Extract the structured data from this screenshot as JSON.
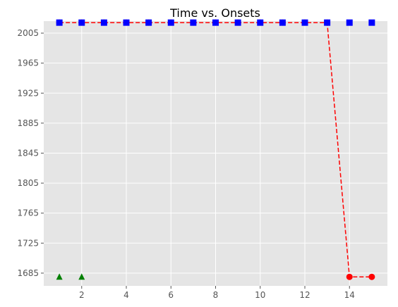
{
  "chart_data": {
    "type": "line",
    "title": "Time vs. Onsets",
    "xlabel": "",
    "ylabel": "",
    "xlim": [
      0.3,
      15.7
    ],
    "ylim": [
      1668,
      2021
    ],
    "x_ticks": [
      2,
      4,
      6,
      8,
      10,
      12,
      14
    ],
    "y_ticks": [
      1685,
      1725,
      1765,
      1805,
      1845,
      1885,
      1925,
      1965,
      2005
    ],
    "grid": true,
    "legend": "none",
    "series": [
      {
        "style": "red-dashed-line-with-circles",
        "color": "#ff0000",
        "line": "dashed",
        "marker": "circle",
        "x": [
          1,
          2,
          3,
          4,
          5,
          6,
          7,
          8,
          9,
          10,
          11,
          12,
          13,
          14,
          15
        ],
        "y": [
          2019,
          2019,
          2019,
          2019,
          2019,
          2019,
          2019,
          2019,
          2019,
          2019,
          2019,
          2019,
          2019,
          1680,
          1680
        ]
      },
      {
        "style": "blue-squares",
        "color": "#0000ff",
        "line": "none",
        "marker": "square",
        "x": [
          1,
          2,
          3,
          4,
          5,
          6,
          7,
          8,
          9,
          10,
          11,
          12,
          13,
          14,
          15
        ],
        "y": [
          2019,
          2019,
          2019,
          2019,
          2019,
          2019,
          2019,
          2019,
          2019,
          2019,
          2019,
          2019,
          2019,
          2019,
          2019
        ]
      },
      {
        "style": "green-triangles",
        "color": "#008000",
        "line": "none",
        "marker": "triangle",
        "x": [
          1,
          2
        ],
        "y": [
          1680,
          1680
        ]
      }
    ]
  }
}
